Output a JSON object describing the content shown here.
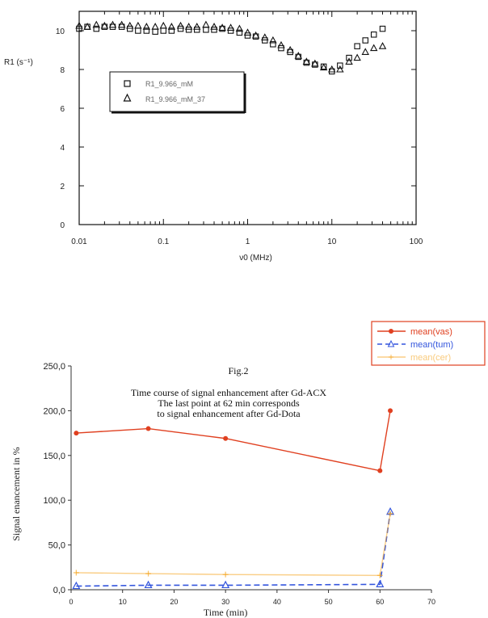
{
  "chart_data": [
    {
      "type": "scatter",
      "ylabel": "R1 (s⁻¹)",
      "xlabel": "ν0 (MHz)",
      "xscale": "log",
      "xlim": [
        0.01,
        100
      ],
      "ylim": [
        0,
        11
      ],
      "x_ticks": [
        "0.01",
        "0.1",
        "1",
        "10",
        "100"
      ],
      "y_ticks": [
        "0",
        "2",
        "4",
        "6",
        "8",
        "10"
      ],
      "legend_position": "center-left",
      "series": [
        {
          "name": "R1_9.966_mM",
          "marker": "square",
          "x": [
            0.01,
            0.0125,
            0.016,
            0.02,
            0.025,
            0.032,
            0.04,
            0.05,
            0.063,
            0.08,
            0.1,
            0.125,
            0.16,
            0.2,
            0.25,
            0.32,
            0.4,
            0.5,
            0.63,
            0.8,
            1.0,
            1.25,
            1.6,
            2.0,
            2.5,
            3.2,
            4.0,
            5.0,
            6.3,
            8.0,
            10,
            12.5,
            16,
            20,
            25,
            31.5,
            40
          ],
          "y": [
            10.1,
            10.2,
            10.1,
            10.2,
            10.2,
            10.2,
            10.1,
            10.0,
            10.0,
            9.95,
            10.0,
            10.0,
            10.1,
            10.05,
            10.05,
            10.05,
            10.05,
            10.1,
            10.0,
            9.9,
            9.75,
            9.7,
            9.5,
            9.3,
            9.1,
            8.9,
            8.65,
            8.35,
            8.25,
            8.15,
            7.9,
            8.2,
            8.6,
            9.2,
            9.5,
            9.8,
            10.1
          ]
        },
        {
          "name": "R1_9.966_mM_37",
          "marker": "triangle",
          "x": [
            0.01,
            0.0125,
            0.016,
            0.02,
            0.025,
            0.032,
            0.04,
            0.05,
            0.063,
            0.08,
            0.1,
            0.125,
            0.16,
            0.2,
            0.25,
            0.32,
            0.4,
            0.5,
            0.63,
            0.8,
            1.0,
            1.25,
            1.6,
            2.0,
            2.5,
            3.2,
            4.0,
            5.0,
            6.3,
            8.0,
            10,
            12.5,
            16,
            20,
            25,
            31.5,
            40
          ],
          "y": [
            10.25,
            10.2,
            10.3,
            10.25,
            10.3,
            10.3,
            10.25,
            10.25,
            10.2,
            10.2,
            10.25,
            10.2,
            10.25,
            10.2,
            10.2,
            10.3,
            10.2,
            10.15,
            10.15,
            10.1,
            9.9,
            9.75,
            9.65,
            9.5,
            9.25,
            9.0,
            8.7,
            8.4,
            8.3,
            8.1,
            8.0,
            8.0,
            8.4,
            8.6,
            8.9,
            9.1,
            9.2
          ]
        }
      ]
    },
    {
      "type": "line",
      "title": "Fig.2",
      "subtitle_lines": [
        "Time course of signal enhancement after Gd-ACX",
        "The last point at 62 min corresponds",
        "to signal enhancement after Gd-Dota"
      ],
      "xlabel": "Time (min)",
      "ylabel": "Signal enancement in %",
      "xlim": [
        0,
        70
      ],
      "ylim": [
        0,
        250
      ],
      "x_ticks": [
        "0",
        "10",
        "20",
        "30",
        "40",
        "50",
        "60",
        "70"
      ],
      "y_ticks": [
        "0,0",
        "50,0",
        "100,0",
        "150,0",
        "200,0",
        "250,0"
      ],
      "legend_position": "top-right",
      "x": [
        1,
        15,
        30,
        60,
        62
      ],
      "series": [
        {
          "name": "mean(vas)",
          "color": "#e04020",
          "marker": "dot",
          "dash": "solid",
          "values": [
            175,
            180,
            169,
            133,
            200
          ]
        },
        {
          "name": "mean(tum)",
          "color": "#3355dd",
          "marker": "triangle",
          "dash": "dashed",
          "values": [
            4,
            5,
            5,
            6,
            87
          ]
        },
        {
          "name": "mean(cer)",
          "color": "#f5a623",
          "marker": "plus",
          "dash": "solid",
          "values": [
            19,
            18,
            17,
            16,
            85
          ]
        }
      ]
    }
  ]
}
